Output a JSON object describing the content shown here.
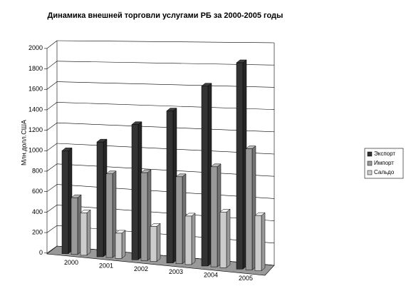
{
  "chart_data": {
    "type": "bar3d",
    "title": "Динамика внешней торговли услугами РБ за 2000-2005 годы",
    "y_label": "Млн.долл.США",
    "categories": [
      "2000",
      "2001",
      "2002",
      "2003",
      "2004",
      "2005"
    ],
    "series": [
      {
        "name": "Экспорт",
        "color": "#333333",
        "values": [
          1000,
          1100,
          1280,
          1420,
          1660,
          1880
        ]
      },
      {
        "name": "Импорт",
        "color": "#999999",
        "values": [
          550,
          800,
          830,
          810,
          920,
          1100
        ]
      },
      {
        "name": "Сальдо",
        "color": "#cccccc",
        "values": [
          410,
          240,
          330,
          450,
          510,
          500
        ]
      }
    ],
    "ylim": [
      0,
      2000
    ],
    "yticks": [
      0,
      200,
      400,
      600,
      800,
      1000,
      1200,
      1400,
      1600,
      1800,
      2000
    ],
    "grid": true,
    "legend": "right"
  }
}
